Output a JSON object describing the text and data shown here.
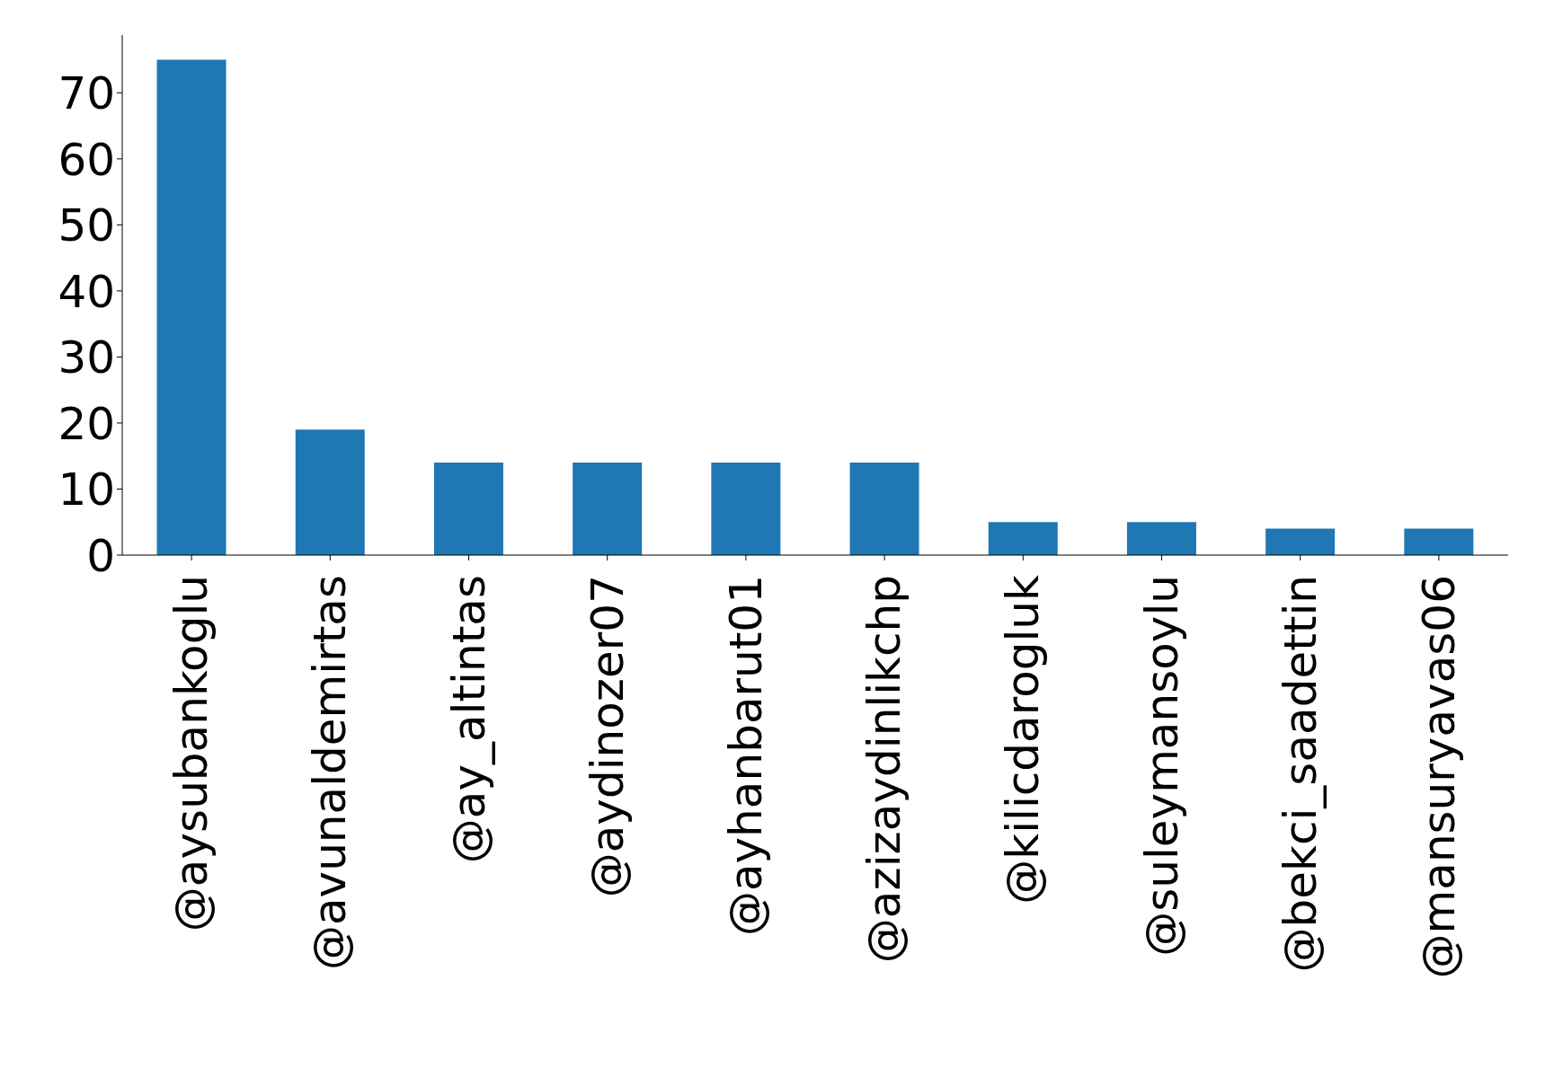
{
  "chart_data": {
    "type": "bar",
    "categories": [
      "@aysubankoglu",
      "@avunaldemirtas",
      "@ay_altintas",
      "@aydinozer07",
      "@ayhanbarut01",
      "@azizaydinlikchp",
      "@kilicdarogluk",
      "@suleymansoylu",
      "@bekci_saadettin",
      "@mansuryavas06"
    ],
    "values": [
      75,
      19,
      14,
      14,
      14,
      14,
      5,
      5,
      4,
      4
    ],
    "color": "#1f77b4",
    "ylim": [
      0,
      78.75
    ],
    "yticks": [
      0,
      10,
      20,
      30,
      40,
      50,
      60,
      70
    ],
    "grid": false,
    "legend": false
  }
}
